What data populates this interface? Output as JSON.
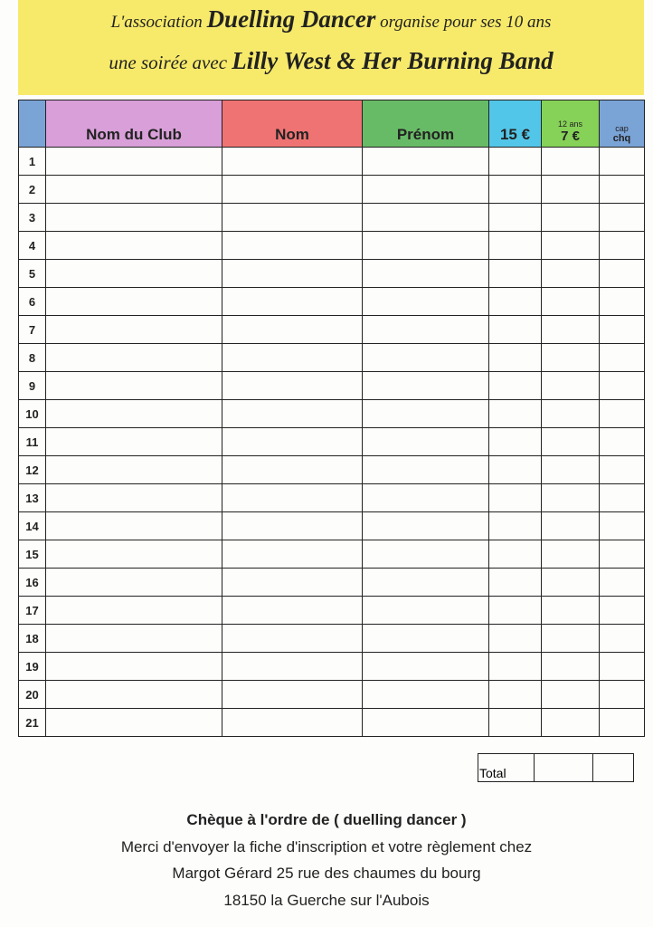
{
  "header": {
    "line1": [
      "L'association",
      "Duelling Dancer",
      "organise pour ses 10 ans"
    ],
    "line2": [
      "une soirée avec",
      "Lilly West & Her Burning Band"
    ]
  },
  "table": {
    "columns": [
      [
        "Nom du Club"
      ],
      [
        "Nom"
      ],
      [
        "Prénom"
      ],
      [
        "15 €"
      ],
      [
        "12 ans",
        "7 €"
      ],
      [
        "cap",
        "chq"
      ]
    ],
    "rows": [
      "1",
      "2",
      "3",
      "4",
      "5",
      "6",
      "7",
      "8",
      "9",
      "10",
      "11",
      "12",
      "13",
      "14",
      "15",
      "16",
      "17",
      "18",
      "19",
      "20",
      "21"
    ],
    "total": "Total"
  },
  "footer": [
    "Chèque à l'ordre de ( duelling dancer )",
    "Merci d'envoyer la fiche d'inscription et votre règlement chez",
    "Margot Gérard 25 rue des chaumes du bourg",
    "18150 la Guerche sur l'Aubois"
  ]
}
